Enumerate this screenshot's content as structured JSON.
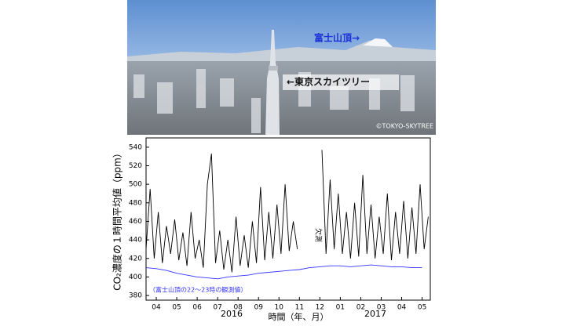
{
  "photo": {
    "fuji_label": "富士山頂→",
    "skytree_label": "←東京スカイツリー",
    "credit": "©TOKYO-SKYTREE"
  },
  "chart_data": {
    "type": "line",
    "ylabel": "CO₂濃度の１時間平均値（ppm）",
    "xlabel": "時間（年、月）",
    "year_labels": [
      "2016",
      "2017"
    ],
    "gap_label": "欠測",
    "series_note": "（富士山頂の22～23時の観測値）",
    "xlim": [
      0,
      13.9
    ],
    "ylim": [
      375,
      550
    ],
    "yticks": [
      380,
      400,
      420,
      440,
      460,
      480,
      500,
      520,
      540
    ],
    "xticks": [
      {
        "value": 0.5,
        "label": "04"
      },
      {
        "value": 1.5,
        "label": "05"
      },
      {
        "value": 2.5,
        "label": "06"
      },
      {
        "value": 3.5,
        "label": "07"
      },
      {
        "value": 4.5,
        "label": "08"
      },
      {
        "value": 5.5,
        "label": "09"
      },
      {
        "value": 6.5,
        "label": "10"
      },
      {
        "value": 7.5,
        "label": "11"
      },
      {
        "value": 8.5,
        "label": "12"
      },
      {
        "value": 9.5,
        "label": "01"
      },
      {
        "value": 10.5,
        "label": "02"
      },
      {
        "value": 11.5,
        "label": "03"
      },
      {
        "value": 12.5,
        "label": "04"
      },
      {
        "value": 13.5,
        "label": "05"
      }
    ],
    "series": [
      {
        "color": "#000000",
        "x": [
          0.0,
          0.2,
          0.4,
          0.6,
          0.8,
          1.0,
          1.2,
          1.4,
          1.6,
          1.8,
          2.0,
          2.2,
          2.4,
          2.6,
          2.8,
          3.0,
          3.2,
          3.4,
          3.6,
          3.8,
          4.0,
          4.2,
          4.4,
          4.6,
          4.8,
          5.0,
          5.2,
          5.4,
          5.6,
          5.8,
          6.0,
          6.2,
          6.4,
          6.6,
          6.8,
          7.0,
          7.2,
          7.4,
          7.6,
          7.8,
          8.0,
          8.2,
          8.4,
          8.6,
          8.8,
          9.0,
          9.2,
          9.4,
          9.6,
          9.8,
          10.0,
          10.2,
          10.4,
          10.6,
          10.8,
          11.0,
          11.2,
          11.4,
          11.6,
          11.8,
          12.0,
          12.2,
          12.4,
          12.6,
          12.8,
          13.0,
          13.2,
          13.4,
          13.6,
          13.8
        ],
        "values": [
          430,
          495,
          420,
          470,
          415,
          455,
          425,
          462,
          418,
          448,
          412,
          470,
          420,
          440,
          410,
          500,
          533,
          415,
          450,
          408,
          440,
          405,
          465,
          412,
          445,
          410,
          460,
          415,
          497,
          418,
          470,
          420,
          478,
          425,
          500,
          428,
          460,
          430,
          null,
          null,
          null,
          null,
          null,
          537,
          425,
          505,
          430,
          490,
          425,
          470,
          420,
          480,
          422,
          510,
          425,
          478,
          420,
          465,
          425,
          490,
          418,
          470,
          425,
          482,
          420,
          475,
          425,
          500,
          430,
          465
        ]
      },
      {
        "color": "#3333ff",
        "x": [
          0.0,
          0.5,
          1.0,
          1.5,
          2.0,
          2.5,
          3.0,
          3.5,
          4.0,
          4.5,
          5.0,
          5.5,
          6.0,
          6.5,
          7.0,
          7.5,
          8.0,
          8.5,
          9.0,
          9.5,
          10.0,
          10.5,
          11.0,
          11.5,
          12.0,
          12.5,
          13.0,
          13.5
        ],
        "values": [
          410,
          409,
          407,
          404,
          402,
          400,
          399,
          398,
          400,
          401,
          402,
          404,
          405,
          406,
          407,
          408,
          410,
          411,
          412,
          412,
          411,
          412,
          413,
          412,
          411,
          411,
          410,
          410
        ]
      }
    ]
  }
}
